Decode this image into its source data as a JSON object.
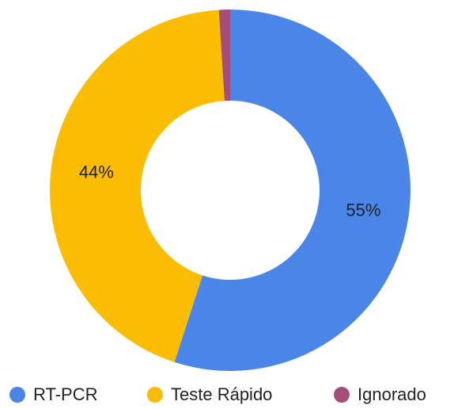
{
  "chart_data": {
    "type": "donut",
    "categories": [
      "RT-PCR",
      "Teste Rápido",
      "Ignorado"
    ],
    "values": [
      55,
      44,
      1
    ],
    "value_labels": [
      "55%",
      "44%",
      null
    ],
    "colors": [
      "#4a86e8",
      "#fbbc04",
      "#a64d79"
    ],
    "legend": "bottom"
  }
}
